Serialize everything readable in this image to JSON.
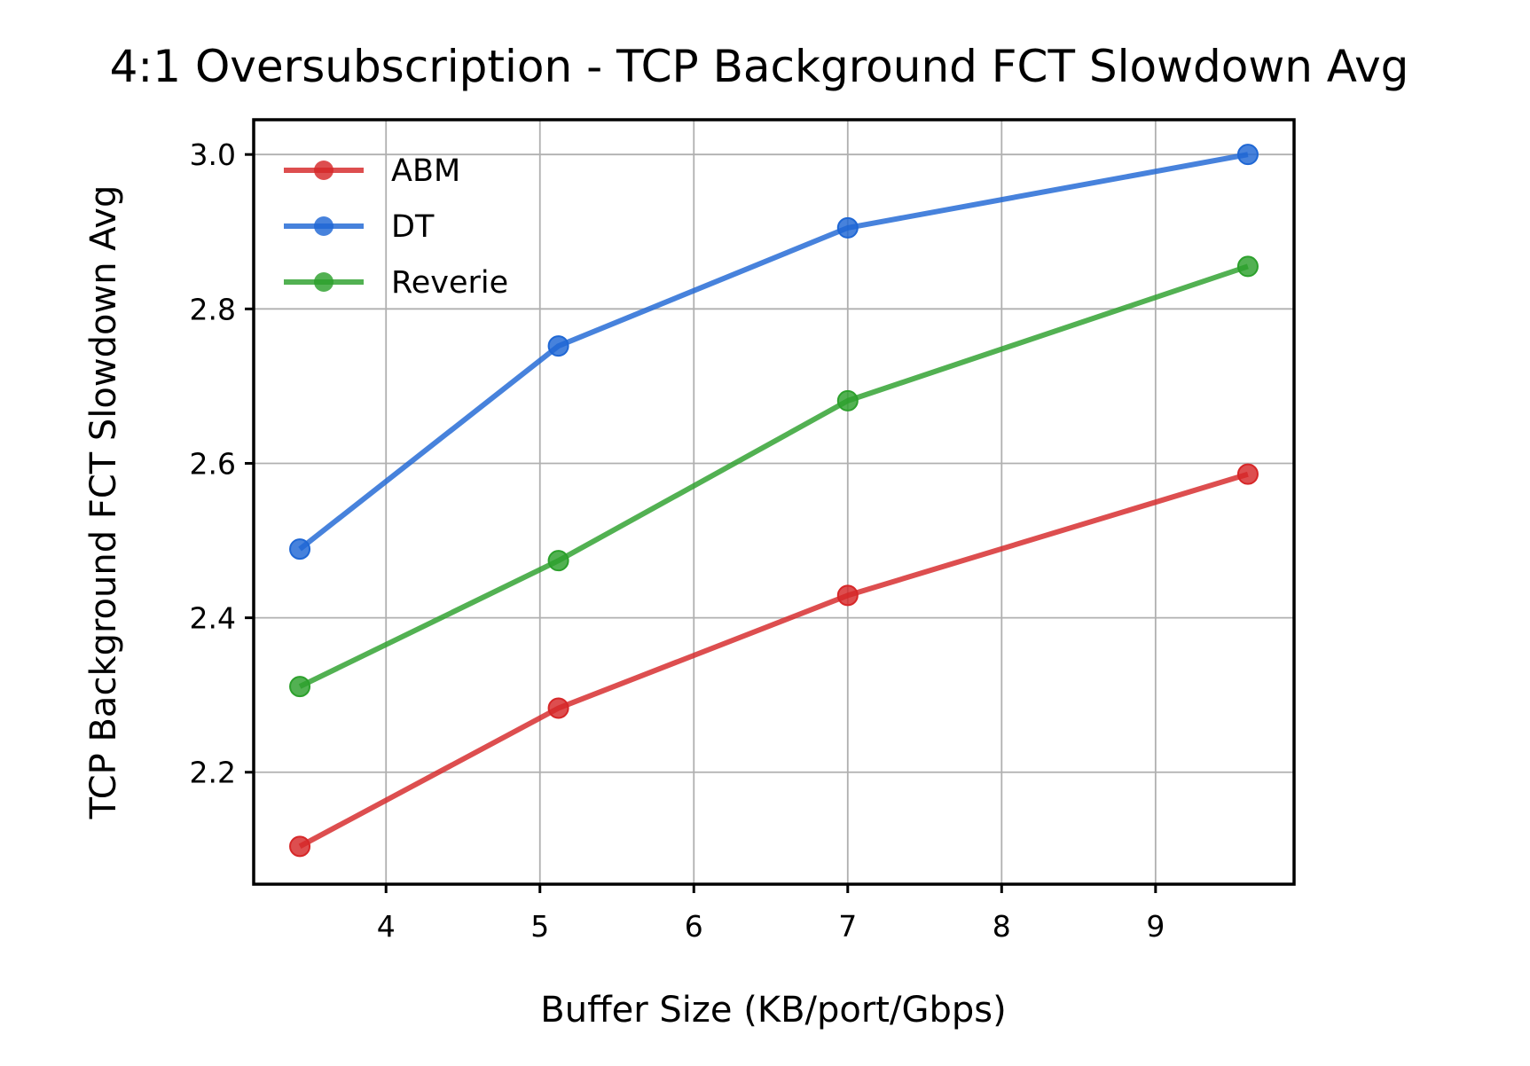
{
  "chart_data": {
    "type": "line",
    "title": "4:1 Oversubscription - TCP Background FCT Slowdown Avg",
    "xlabel": "Buffer Size (KB/port/Gbps)",
    "ylabel": "TCP Background FCT Slowdown Avg",
    "xlim": [
      3.14,
      9.9
    ],
    "ylim": [
      2.055,
      3.045
    ],
    "x_ticks": [
      4,
      5,
      6,
      7,
      8,
      9
    ],
    "x_tick_labels": [
      "4",
      "5",
      "6",
      "7",
      "8",
      "9"
    ],
    "y_ticks": [
      2.2,
      2.4,
      2.6,
      2.8,
      3.0
    ],
    "y_tick_labels": [
      "2.2",
      "2.4",
      "2.6",
      "2.8",
      "3.0"
    ],
    "grid": true,
    "legend_position": "top-left",
    "x": [
      3.44,
      5.12,
      7.0,
      9.6
    ],
    "series": [
      {
        "name": "ABM",
        "color": "#d62728",
        "values": [
          2.104,
          2.283,
          2.429,
          2.586
        ]
      },
      {
        "name": "DT",
        "color": "#1f67d4",
        "values": [
          2.489,
          2.752,
          2.905,
          3.0
        ]
      },
      {
        "name": "Reverie",
        "color": "#2ca02c",
        "values": [
          2.311,
          2.474,
          2.681,
          2.855
        ]
      }
    ]
  }
}
